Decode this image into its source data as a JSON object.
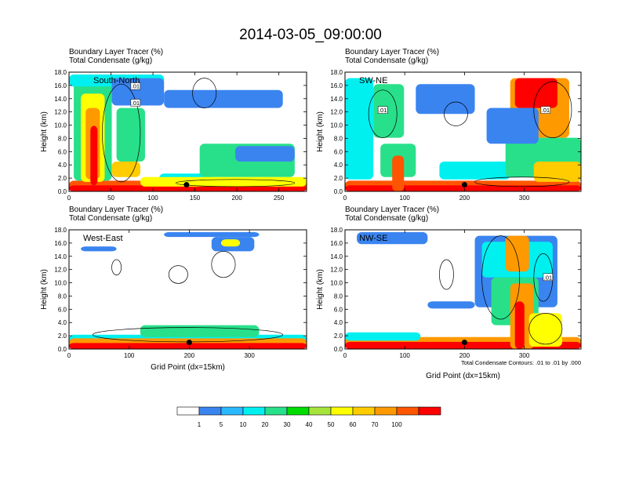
{
  "title": "2014-03-05_09:00:00",
  "subtitle_lines": [
    "Boundary Layer Tracer    (%)",
    "Total Condensate    (g/kg)"
  ],
  "ylabel": "Height (km)",
  "xlabel": "Grid Point (dx=15km)",
  "contour_note": "Total Condensate Contours: .01 to .01 by .000",
  "contour_label": ".01",
  "colorbar": {
    "colors": [
      "#ffffff",
      "#3a84f0",
      "#2ab8ff",
      "#00f0f0",
      "#28e08a",
      "#00dc00",
      "#a6e43c",
      "#ffff00",
      "#ffcc00",
      "#ff9900",
      "#ff5500",
      "#ff0000"
    ],
    "labels": [
      "1",
      "5",
      "10",
      "20",
      "30",
      "40",
      "50",
      "60",
      "70",
      "100"
    ]
  },
  "chart_data": [
    {
      "type": "heatmap",
      "name": "South-North",
      "xticks": [
        "0",
        "50",
        "100",
        "150",
        "200",
        "250"
      ],
      "xlim": [
        0,
        283
      ],
      "yticks": [
        "0.0",
        "2.0",
        "4.0",
        "6.0",
        "8.0",
        "10.0",
        "12.0",
        "14.0",
        "16.0",
        "18.0"
      ],
      "ylim": [
        0,
        18
      ],
      "marker": [
        140,
        1.0
      ]
    },
    {
      "type": "heatmap",
      "name": "SW-NE",
      "xticks": [
        "0",
        "100",
        "200",
        "300"
      ],
      "xlim": [
        0,
        395
      ],
      "yticks": [
        "0.0",
        "2.0",
        "4.0",
        "6.0",
        "8.0",
        "10.0",
        "12.0",
        "14.0",
        "16.0",
        "18.0"
      ],
      "ylim": [
        0,
        18
      ],
      "marker": [
        200,
        1.0
      ]
    },
    {
      "type": "heatmap",
      "name": "West-East",
      "xticks": [
        "0",
        "100",
        "200",
        "300"
      ],
      "xlim": [
        0,
        395
      ],
      "yticks": [
        "0.0",
        "2.0",
        "4.0",
        "6.0",
        "8.0",
        "10.0",
        "12.0",
        "14.0",
        "16.0",
        "18.0"
      ],
      "ylim": [
        0,
        18
      ],
      "marker": [
        200,
        1.0
      ]
    },
    {
      "type": "heatmap",
      "name": "NW-SE",
      "xticks": [
        "0",
        "100",
        "200",
        "300"
      ],
      "xlim": [
        0,
        395
      ],
      "yticks": [
        "0.0",
        "2.0",
        "4.0",
        "6.0",
        "8.0",
        "10.0",
        "12.0",
        "14.0",
        "16.0",
        "18.0"
      ],
      "ylim": [
        0,
        18
      ],
      "marker": [
        200,
        1.0
      ]
    }
  ]
}
